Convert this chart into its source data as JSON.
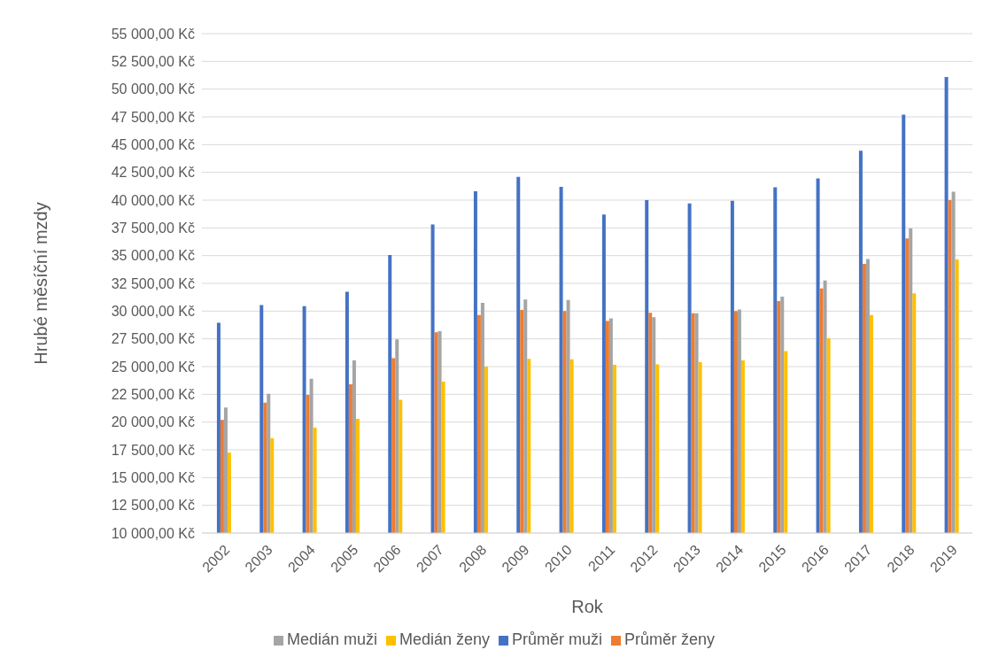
{
  "chart_data": {
    "type": "bar",
    "xlabel": "Rok",
    "ylabel": "Hrubé měsíční mzdy",
    "categories": [
      "2002",
      "2003",
      "2004",
      "2005",
      "2006",
      "2007",
      "2008",
      "2009",
      "2010",
      "2011",
      "2012",
      "2013",
      "2014",
      "2015",
      "2016",
      "2017",
      "2018",
      "2019"
    ],
    "series": [
      {
        "name": "Průměr muži",
        "color": "#4472c4",
        "values": [
          28950,
          30550,
          30450,
          31750,
          35050,
          37800,
          40800,
          42100,
          41200,
          38700,
          40000,
          39700,
          39950,
          41150,
          41950,
          44450,
          47700,
          51100
        ]
      },
      {
        "name": "Průměr ženy",
        "color": "#ed7d31",
        "values": [
          20200,
          21750,
          22450,
          23400,
          25750,
          28100,
          29650,
          30100,
          30000,
          29100,
          29850,
          29800,
          30000,
          30900,
          32050,
          34250,
          36550,
          40000
        ]
      },
      {
        "name": "Medián muži",
        "color": "#a5a5a5",
        "values": [
          21300,
          22550,
          23900,
          25550,
          27450,
          28200,
          30750,
          31050,
          31000,
          29350,
          29450,
          29800,
          30150,
          31300,
          32750,
          34700,
          37450,
          40750
        ]
      },
      {
        "name": "Medián ženy",
        "color": "#ffc000",
        "values": [
          17250,
          18550,
          19500,
          20300,
          22000,
          23650,
          25000,
          25700,
          25650,
          25150,
          25200,
          25400,
          25550,
          26400,
          27550,
          29650,
          31600,
          34650
        ]
      }
    ],
    "ylim": [
      10000,
      55000
    ],
    "yticks": [
      {
        "value": 10000,
        "label": "10 000,00 Kč"
      },
      {
        "value": 12500,
        "label": "12 500,00 Kč"
      },
      {
        "value": 15000,
        "label": "15 000,00 Kč"
      },
      {
        "value": 17500,
        "label": "17 500,00 Kč"
      },
      {
        "value": 20000,
        "label": "20 000,00 Kč"
      },
      {
        "value": 22500,
        "label": "22 500,00 Kč"
      },
      {
        "value": 25000,
        "label": "25 000,00 Kč"
      },
      {
        "value": 27500,
        "label": "27 500,00 Kč"
      },
      {
        "value": 30000,
        "label": "30 000,00 Kč"
      },
      {
        "value": 32500,
        "label": "32 500,00 Kč"
      },
      {
        "value": 35000,
        "label": "35 000,00 Kč"
      },
      {
        "value": 37500,
        "label": "37 500,00 Kč"
      },
      {
        "value": 40000,
        "label": "40 000,00 Kč"
      },
      {
        "value": 42500,
        "label": "42 500,00 Kč"
      },
      {
        "value": 45000,
        "label": "45 000,00 Kč"
      },
      {
        "value": 47500,
        "label": "47 500,00 Kč"
      },
      {
        "value": 50000,
        "label": "50 000,00 Kč"
      },
      {
        "value": 52500,
        "label": "52 500,00 Kč"
      },
      {
        "value": 55000,
        "label": "55 000,00 Kč"
      }
    ],
    "grid": "y",
    "legend": "bottom"
  }
}
